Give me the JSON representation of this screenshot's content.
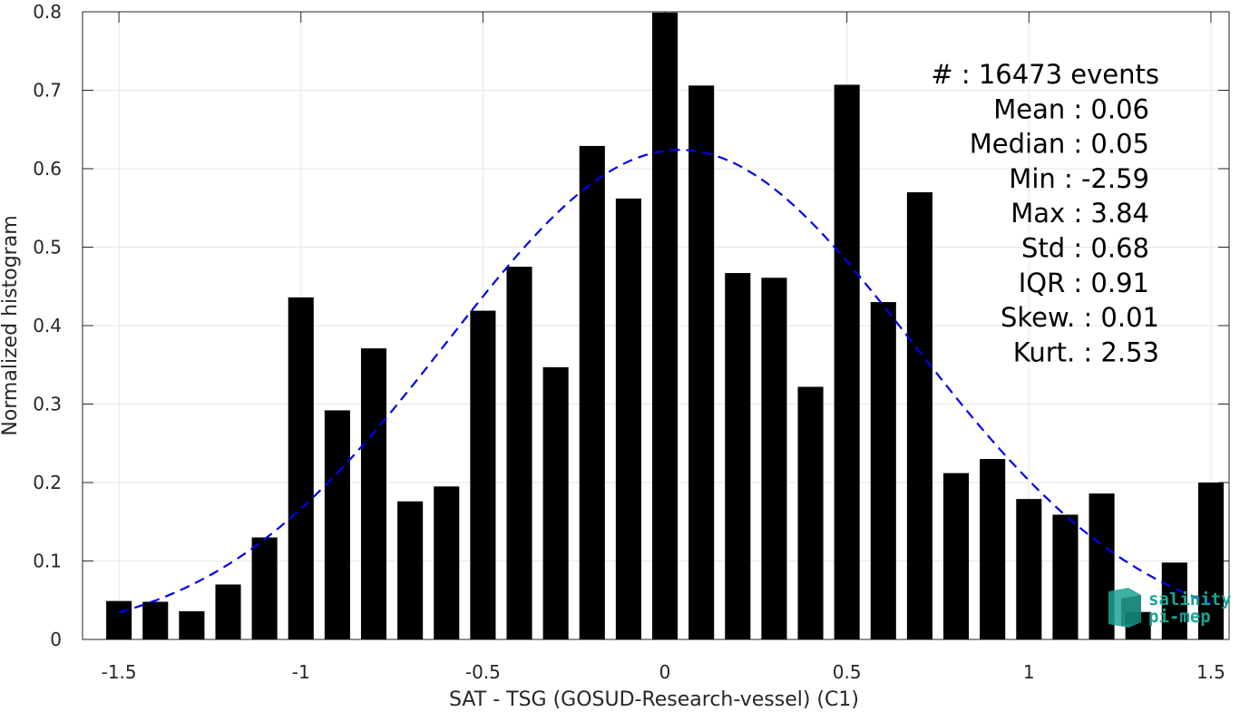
{
  "chart_data": {
    "type": "bar",
    "xlabel": "SAT - TSG (GOSUD-Research-vessel) (C1)",
    "ylabel": "Normalized histogram",
    "xlim": [
      -1.6,
      1.55
    ],
    "ylim": [
      0,
      0.8
    ],
    "xticks": [
      -1.5,
      -1,
      -0.5,
      0,
      0.5,
      1,
      1.5
    ],
    "xtick_labels": [
      "-1.5",
      "-1",
      "-0.5",
      "0",
      "0.5",
      "1",
      "1.5"
    ],
    "yticks": [
      0,
      0.1,
      0.2,
      0.3,
      0.4,
      0.5,
      0.6,
      0.7,
      0.8
    ],
    "ytick_labels": [
      "0",
      "0.1",
      "0.2",
      "0.3",
      "0.4",
      "0.5",
      "0.6",
      "0.7",
      "0.8"
    ],
    "grid": true,
    "bar_color": "#000000",
    "bar_width": 0.07,
    "bins": [
      -1.5,
      -1.4,
      -1.3,
      -1.2,
      -1.1,
      -1.0,
      -0.9,
      -0.8,
      -0.7,
      -0.6,
      -0.5,
      -0.4,
      -0.3,
      -0.2,
      -0.1,
      0.0,
      0.1,
      0.2,
      0.3,
      0.4,
      0.5,
      0.6,
      0.7,
      0.8,
      0.9,
      1.0,
      1.1,
      1.2,
      1.3,
      1.4,
      1.5
    ],
    "values": [
      0.049,
      0.048,
      0.036,
      0.07,
      0.13,
      0.436,
      0.292,
      0.371,
      0.176,
      0.195,
      0.419,
      0.475,
      0.347,
      0.629,
      0.562,
      0.799,
      0.706,
      0.467,
      0.461,
      0.322,
      0.707,
      0.43,
      0.57,
      0.212,
      0.23,
      0.179,
      0.159,
      0.186,
      0.035,
      0.098,
      0.2
    ],
    "fit": {
      "type": "gaussian",
      "color": "#0000ee",
      "style": "dashed",
      "mean": 0.04,
      "std": 0.64,
      "peak": 0.624,
      "x_range": [
        -1.5,
        1.5
      ]
    },
    "stats": [
      "#  : 16473 events",
      "Mean : 0.06",
      "Median : 0.05",
      "Min : -2.59",
      "Max : 3.84",
      "Std : 0.68",
      "IQR : 0.91",
      "Skew. : 0.01",
      "Kurt. : 2.53"
    ]
  },
  "logo": {
    "line1": "salinity",
    "line2": "pi-mep",
    "color": "#1aa394"
  }
}
